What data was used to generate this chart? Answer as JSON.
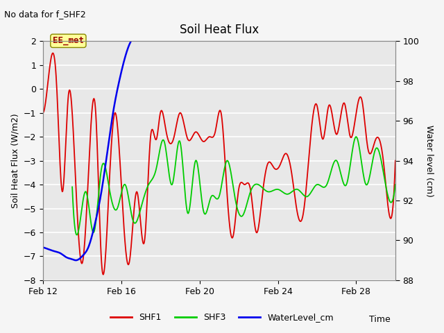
{
  "title": "Soil Heat Flux",
  "top_left_text": "No data for f_SHF2",
  "box_label": "EE_met",
  "xlabel": "Time",
  "ylabel_left": "Soil Heat Flux (W/m2)",
  "ylabel_right": "Water level (cm)",
  "ylim_left": [
    -8.0,
    2.0
  ],
  "ylim_right": [
    88,
    100
  ],
  "yticks_left": [
    -8.0,
    -7.0,
    -6.0,
    -5.0,
    -4.0,
    -3.0,
    -2.0,
    -1.0,
    0.0,
    1.0,
    2.0
  ],
  "yticks_right": [
    88,
    90,
    92,
    94,
    96,
    98,
    100
  ],
  "background_color": "#e8e8e8",
  "plot_bg_color": "#e8e8e8",
  "fig_bg_color": "#f5f5f5",
  "grid_color": "#ffffff",
  "SHF1_color": "#dd0000",
  "SHF3_color": "#00cc00",
  "Water_color": "#0000ee",
  "legend_entries": [
    "SHF1",
    "SHF3",
    "WaterLevel_cm"
  ],
  "xtick_days": [
    0,
    4,
    8,
    12,
    16
  ],
  "xtick_labels": [
    "Feb 12",
    "Feb 16",
    "Feb 20",
    "Feb 24",
    "Feb 28"
  ],
  "xmax": 18,
  "SHF1_kx": [
    0.0,
    0.4,
    0.7,
    1.0,
    1.3,
    1.7,
    2.0,
    2.3,
    2.7,
    3.0,
    3.4,
    3.7,
    4.0,
    4.4,
    4.8,
    5.2,
    5.5,
    5.8,
    6.0,
    6.3,
    6.7,
    7.0,
    7.4,
    7.8,
    8.2,
    8.5,
    8.8,
    9.1,
    9.4,
    9.7,
    10.0,
    10.3,
    10.6,
    10.9,
    11.2,
    11.5,
    11.8,
    12.1,
    12.4,
    12.7,
    13.0,
    13.3,
    13.6,
    14.0,
    14.3,
    14.6,
    15.0,
    15.4,
    15.7,
    16.0,
    16.3,
    16.6,
    17.0,
    17.4,
    17.7,
    18.0
  ],
  "SHF1_ky": [
    -1.0,
    1.2,
    0.2,
    -4.3,
    -0.3,
    -4.3,
    -7.3,
    -4.0,
    -1.0,
    -7.3,
    -3.8,
    -1.0,
    -3.9,
    -7.3,
    -4.3,
    -6.3,
    -2.0,
    -2.1,
    -1.0,
    -1.8,
    -2.0,
    -1.0,
    -2.1,
    -1.8,
    -2.2,
    -2.0,
    -1.8,
    -1.0,
    -4.3,
    -6.2,
    -4.2,
    -4.0,
    -4.2,
    -6.0,
    -4.5,
    -3.1,
    -3.3,
    -3.2,
    -2.7,
    -3.5,
    -5.2,
    -5.2,
    -2.7,
    -0.7,
    -2.1,
    -0.7,
    -1.9,
    -0.6,
    -2.0,
    -1.0,
    -0.5,
    -2.5,
    -2.1,
    -3.1,
    -5.3,
    -3.0
  ],
  "SHF3_kx": [
    1.5,
    1.8,
    2.2,
    2.6,
    3.0,
    3.4,
    3.8,
    4.2,
    4.6,
    5.0,
    5.4,
    5.8,
    6.2,
    6.6,
    7.0,
    7.4,
    7.8,
    8.2,
    8.6,
    9.0,
    9.4,
    9.8,
    10.2,
    10.6,
    11.0,
    11.5,
    12.0,
    12.5,
    13.0,
    13.5,
    14.0,
    14.5,
    15.0,
    15.5,
    16.0,
    16.5,
    17.0,
    17.5,
    18.0
  ],
  "SHF3_ky": [
    -4.1,
    -6.0,
    -4.3,
    -6.0,
    -3.3,
    -4.2,
    -5.0,
    -4.0,
    -5.5,
    -5.0,
    -4.0,
    -3.3,
    -2.2,
    -4.0,
    -2.2,
    -5.2,
    -3.0,
    -5.1,
    -4.5,
    -4.5,
    -3.0,
    -4.5,
    -5.3,
    -4.3,
    -4.0,
    -4.3,
    -4.2,
    -4.4,
    -4.2,
    -4.5,
    -4.0,
    -4.0,
    -3.0,
    -4.0,
    -2.0,
    -4.0,
    -2.5,
    -4.0,
    -4.0
  ],
  "Water_kx": [
    0.0,
    0.3,
    0.6,
    0.9,
    1.2,
    1.5,
    1.7,
    1.9,
    2.1,
    2.3,
    2.5,
    2.7,
    3.0,
    3.3,
    3.6,
    3.9,
    4.2,
    4.5
  ],
  "Water_ky": [
    89.65,
    89.55,
    89.45,
    89.35,
    89.15,
    89.05,
    89.0,
    89.1,
    89.3,
    89.6,
    90.2,
    91.0,
    92.5,
    94.5,
    96.5,
    98.0,
    99.2,
    100.0
  ]
}
